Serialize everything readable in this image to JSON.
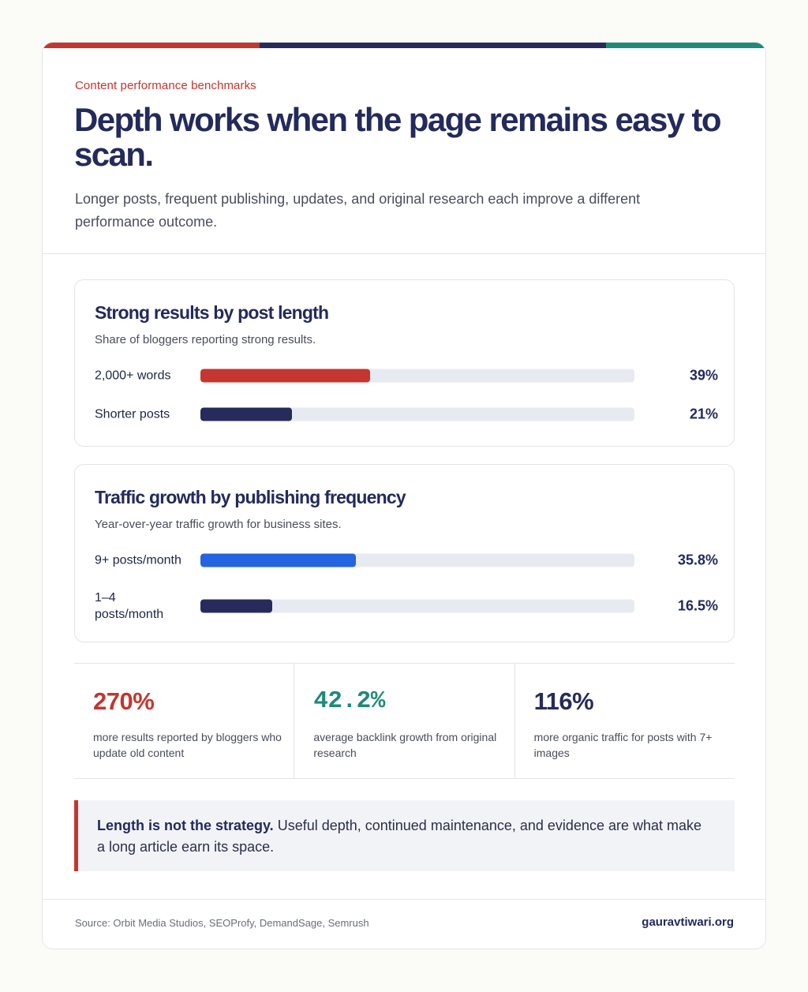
{
  "theme": {
    "red": "#c4362f",
    "navy": "#262b5c",
    "blue": "#2563e0",
    "teal": "#1f8a78",
    "track": "#e8eaf1"
  },
  "header": {
    "eyebrow": "Content performance benchmarks",
    "title": "Depth works when the page remains easy to scan.",
    "subtitle": "Longer posts, frequent publishing, updates, and original research each improve a different performance outcome."
  },
  "chart_data": [
    {
      "type": "bar",
      "orientation": "horizontal",
      "title": "Strong results by post length",
      "subtitle": "Share of bloggers reporting strong results.",
      "categories": [
        "2,000+ words",
        "Shorter posts"
      ],
      "values": [
        39,
        21
      ],
      "value_labels": [
        "39%",
        "21%"
      ],
      "colors": [
        "#c4362f",
        "#262b5c"
      ],
      "xlim": [
        0,
        100
      ]
    },
    {
      "type": "bar",
      "orientation": "horizontal",
      "title": "Traffic growth by publishing frequency",
      "subtitle": "Year-over-year traffic growth for business sites.",
      "categories": [
        "9+ posts/month",
        "1–4 posts/month"
      ],
      "values": [
        35.8,
        16.5
      ],
      "value_labels": [
        "35.8%",
        "16.5%"
      ],
      "colors": [
        "#2563e0",
        "#262b5c"
      ],
      "xlim": [
        0,
        100
      ]
    }
  ],
  "stats": [
    {
      "value": "270%",
      "description": "more results reported by bloggers who update old content",
      "color": "#c4362f"
    },
    {
      "value": "42.2%",
      "description": "average backlink growth from original research",
      "color": "#1f8a78"
    },
    {
      "value": "116%",
      "description": "more organic traffic for posts with 7+ images",
      "color": "#262b5c"
    }
  ],
  "callout": {
    "bold": "Length is not the strategy.",
    "text": " Useful depth, continued maintenance, and evidence are what make a long article earn its space."
  },
  "footer": {
    "source": "Source: Orbit Media Studios, SEOProfy, DemandSage, Semrush",
    "brand": "gauravtiwari.org"
  }
}
